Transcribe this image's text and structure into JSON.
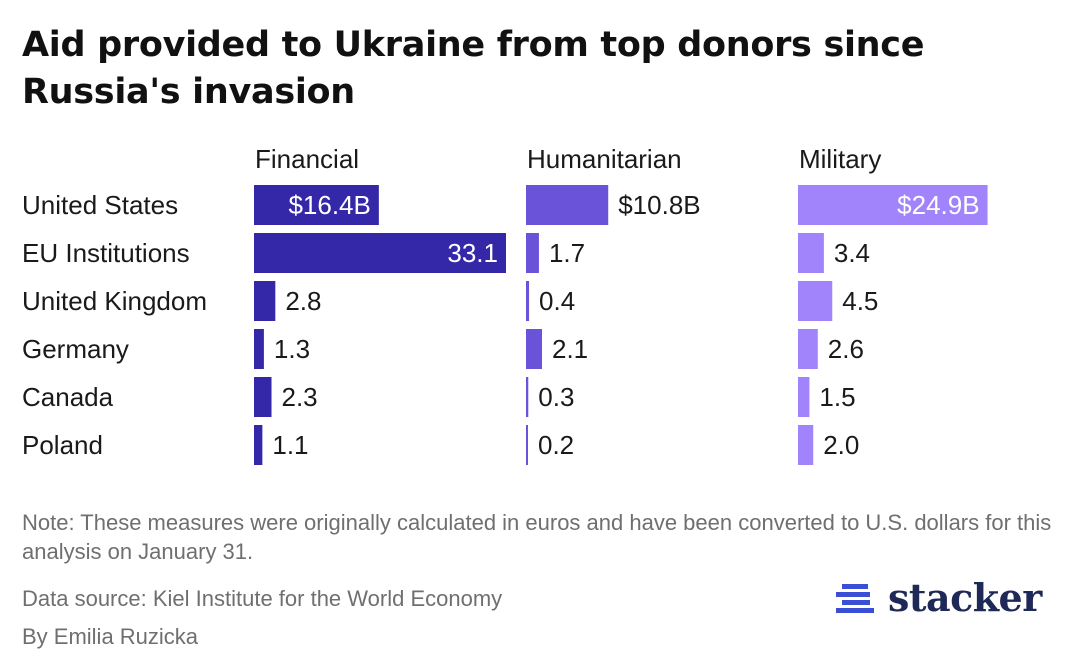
{
  "chart_data": {
    "type": "bar",
    "title": "Aid provided to Ukraine from top donors since Russia's invasion",
    "categories": [
      "United States",
      "EU Institutions",
      "United Kingdom",
      "Germany",
      "Canada",
      "Poland"
    ],
    "series": [
      {
        "name": "Financial",
        "color": "#3428a8",
        "values": [
          16.4,
          33.1,
          2.8,
          1.3,
          2.3,
          1.1
        ],
        "labels": [
          "$16.4B",
          "33.1",
          "2.8",
          "1.3",
          "2.3",
          "1.1"
        ]
      },
      {
        "name": "Humanitarian",
        "color": "#6a52d9",
        "values": [
          10.8,
          1.7,
          0.4,
          2.1,
          0.3,
          0.2
        ],
        "labels": [
          "$10.8B",
          "1.7",
          "0.4",
          "2.1",
          "0.3",
          "0.2"
        ]
      },
      {
        "name": "Military",
        "color": "#a184fb",
        "values": [
          24.9,
          3.4,
          4.5,
          2.6,
          1.5,
          2.0
        ],
        "labels": [
          "$24.9B",
          "3.4",
          "4.5",
          "2.6",
          "1.5",
          "2.0"
        ]
      }
    ],
    "xlabel": "",
    "ylabel": ""
  },
  "note": "Note: These measures were originally calculated in euros and have been converted to U.S. dollars for this analysis on January 31.",
  "source": "Data source: Kiel Institute for the World Economy",
  "byline": "By Emilia Ruzicka",
  "logo": {
    "text": "stacker",
    "icon": "stacker-logo-icon",
    "color": "#1f2957"
  }
}
